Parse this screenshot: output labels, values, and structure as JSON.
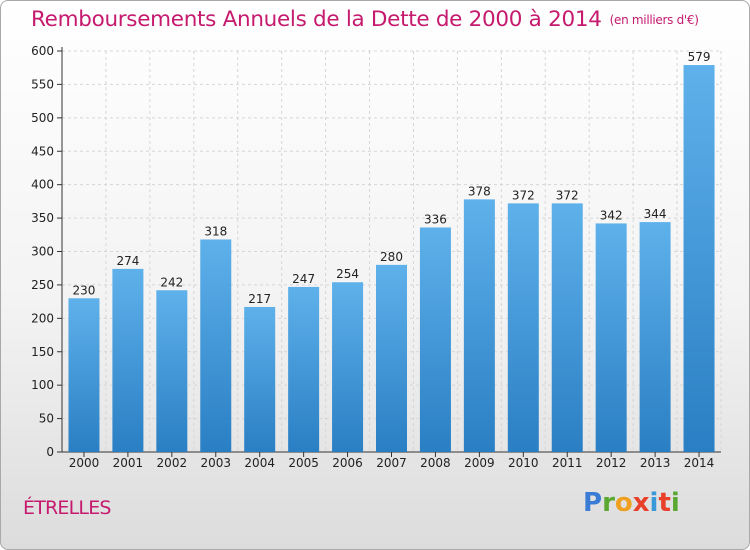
{
  "title": "Remboursements Annuels de la Dette de 2000 à 2014",
  "unit": "(en milliers d'€)",
  "commune": "ÉTRELLES",
  "logo_text": "Proxiti",
  "colors": {
    "bar_light": "#5eb1ea",
    "bar_dark": "#2a7fc4",
    "title": "#c51a6e"
  },
  "chart_data": {
    "type": "bar",
    "title": "Remboursements Annuels de la Dette de 2000 à 2014",
    "xlabel": "",
    "ylabel": "",
    "ylim": [
      0,
      600
    ],
    "yticks": [
      0,
      50,
      100,
      150,
      200,
      250,
      300,
      350,
      400,
      450,
      500,
      550,
      600
    ],
    "categories": [
      "2000",
      "2001",
      "2002",
      "2003",
      "2004",
      "2005",
      "2006",
      "2007",
      "2008",
      "2009",
      "2010",
      "2011",
      "2012",
      "2013",
      "2014"
    ],
    "values": [
      230,
      274,
      242,
      318,
      217,
      247,
      254,
      280,
      336,
      378,
      372,
      372,
      342,
      344,
      579
    ],
    "grid": true
  }
}
